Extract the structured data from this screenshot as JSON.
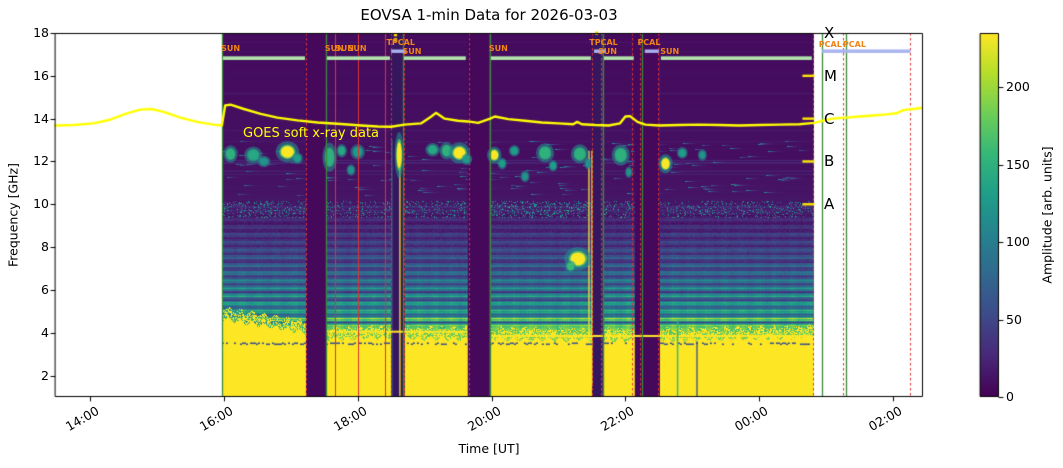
{
  "title": "EOVSA 1-min Data for 2026-03-03",
  "axes": {
    "x": {
      "label": "Time [UT]"
    },
    "y": {
      "label": "Frequency [GHz]"
    }
  },
  "colorbar": {
    "label": "Amplitude [arb. units]",
    "ticks": [
      0,
      50,
      100,
      150,
      200
    ],
    "range": [
      0,
      235
    ],
    "colormap": "viridis"
  },
  "chart_data": {
    "type": "heatmap",
    "title": "EOVSA 1-min Data for 2026-03-03",
    "xlabel": "Time [UT]",
    "ylabel": "Frequency [GHz]",
    "x_axis": {
      "range": [
        13.477,
        26.447
      ],
      "ticks": [
        {
          "hour": 14,
          "label": "14:00"
        },
        {
          "hour": 16,
          "label": "16:00"
        },
        {
          "hour": 18,
          "label": "18:00"
        },
        {
          "hour": 20,
          "label": "20:00"
        },
        {
          "hour": 22,
          "label": "22:00"
        },
        {
          "hour": 24,
          "label": "00:00"
        },
        {
          "hour": 26,
          "label": "02:00"
        }
      ]
    },
    "y_axis": {
      "range": [
        1,
        18
      ],
      "ticks": [
        18,
        16,
        14,
        12,
        10,
        8,
        6,
        4,
        2
      ]
    },
    "amplitude_range": [
      0,
      235
    ],
    "colormap": [
      "#440154",
      "#482878",
      "#3e4a89",
      "#31688e",
      "#26828e",
      "#1f9e89",
      "#35b779",
      "#6ece58",
      "#b5de2b",
      "#fde725"
    ],
    "profile": [
      [
        1,
        235
      ],
      [
        3.5,
        235
      ],
      [
        3.7,
        230
      ],
      [
        3.95,
        215
      ],
      [
        4.15,
        190
      ],
      [
        4.35,
        162
      ],
      [
        4.6,
        135
      ],
      [
        4.9,
        115
      ],
      [
        5.3,
        98
      ],
      [
        5.8,
        85
      ],
      [
        6.3,
        74
      ],
      [
        6.8,
        64
      ],
      [
        7.3,
        55
      ],
      [
        7.8,
        46
      ],
      [
        8.3,
        38
      ],
      [
        8.8,
        30
      ],
      [
        9.3,
        22
      ],
      [
        9.8,
        16
      ],
      [
        10.3,
        13
      ],
      [
        11,
        11
      ],
      [
        12,
        10
      ],
      [
        12.5,
        9
      ],
      [
        13,
        10
      ],
      [
        14,
        9
      ],
      [
        15,
        8
      ],
      [
        16,
        8
      ],
      [
        17,
        7
      ],
      [
        18,
        7
      ]
    ],
    "scans": [
      {
        "start": 15.972,
        "end": 17.227,
        "yellow_top": [
          4.65,
          4.0
        ],
        "speckle": 0.35
      },
      {
        "start": 17.526,
        "end": 18.497,
        "yellow_top": [
          3.7,
          3.8
        ],
        "speckle": 0.3
      },
      {
        "start": 18.675,
        "end": 19.63,
        "yellow_top": [
          3.75,
          3.7
        ],
        "speckle": 0.35
      },
      {
        "start": 19.975,
        "end": 21.5,
        "yellow_top": [
          3.7,
          3.65
        ],
        "speckle": 0.45
      },
      {
        "start": 21.664,
        "end": 22.14,
        "yellow_top": [
          3.65,
          3.65
        ],
        "speckle": 0.3
      },
      {
        "start": 22.516,
        "end": 24.8,
        "yellow_top": [
          3.65,
          3.8
        ],
        "speckle": 0.3
      }
    ],
    "gaps": [
      [
        17.227,
        17.526
      ],
      [
        19.645,
        19.975
      ],
      [
        22.14,
        22.516
      ]
    ],
    "cal_columns": [
      [
        18.497,
        18.705
      ],
      [
        21.5,
        21.664
      ]
    ],
    "cal_streaks": [
      {
        "t": 18.51,
        "f0": 1,
        "f1": 13,
        "value": 70
      },
      {
        "t": 18.63,
        "f0": 1,
        "f1": 13,
        "value": 235
      },
      {
        "t": 21.455,
        "f0": 1.5,
        "f1": 12.5,
        "value": 235
      },
      {
        "t": 21.5,
        "f0": 1.5,
        "f1": 12.5,
        "value": 235
      }
    ],
    "sun_bars": {
      "freq": 16.83,
      "color": "#b1e6ac"
    },
    "cal_bars": {
      "freq": 17.15,
      "color": "#a9b3ef",
      "windows": [
        [
          18.5,
          18.72
        ],
        [
          21.53,
          21.7
        ],
        [
          22.29,
          22.5
        ],
        [
          24.94,
          26.26
        ]
      ]
    },
    "cal_dots": [
      {
        "t": 18.565,
        "f": 17.92
      },
      {
        "t": 18.565,
        "f": 17.68
      },
      {
        "t": 21.57,
        "f": 18.0
      }
    ],
    "vlines": {
      "green": [
        15.972,
        17.526,
        18.675,
        19.975,
        21.664,
        22.247,
        24.935,
        25.29
      ],
      "red_dashed": [
        17.227,
        18.497,
        18.69,
        19.66,
        21.5,
        21.634,
        22.098,
        22.217,
        22.486,
        24.81,
        25.25,
        26.26
      ],
      "red_solid": [
        17.66,
        18.004,
        18.407
      ]
    },
    "annotations": [
      {
        "text": "SUN",
        "t": 15.99,
        "row": 0
      },
      {
        "text": "SUN",
        "t": 17.54,
        "row": 0
      },
      {
        "text": "SUN",
        "t": 17.69,
        "row": 0
      },
      {
        "text": "SUN",
        "t": 17.88,
        "row": 0
      },
      {
        "text": "TPCAL",
        "t": 18.46,
        "row": -1
      },
      {
        "text": "SUN",
        "t": 18.7,
        "row": 1
      },
      {
        "text": "SUN",
        "t": 19.99,
        "row": 0
      },
      {
        "text": "TPCAL",
        "t": 21.49,
        "row": -1
      },
      {
        "text": "SUN",
        "t": 21.62,
        "row": 1
      },
      {
        "text": "PCAL",
        "t": 22.21,
        "row": -1
      },
      {
        "text": "SUN",
        "t": 22.55,
        "row": 1
      },
      {
        "text": "PCAL",
        "t": 24.92,
        "row": 2
      },
      {
        "text": "PCAL",
        "t": 25.28,
        "row": 2
      }
    ],
    "blobs": [
      [
        16.1,
        12.35,
        8,
        0.45,
        150
      ],
      [
        16.44,
        12.3,
        10,
        0.45,
        140
      ],
      [
        16.6,
        12.0,
        7,
        0.3,
        120
      ],
      [
        16.95,
        12.45,
        13,
        0.55,
        235
      ],
      [
        17.1,
        12.15,
        6,
        0.3,
        130
      ],
      [
        17.58,
        12.2,
        8,
        0.75,
        150
      ],
      [
        17.76,
        12.5,
        6,
        0.35,
        140
      ],
      [
        17.9,
        11.6,
        5,
        0.3,
        120
      ],
      [
        18.0,
        12.45,
        8,
        0.4,
        130
      ],
      [
        18.62,
        12.3,
        5,
        1.2,
        235
      ],
      [
        19.12,
        12.55,
        8,
        0.35,
        140
      ],
      [
        19.33,
        12.5,
        8,
        0.45,
        150
      ],
      [
        19.52,
        12.4,
        12,
        0.55,
        235
      ],
      [
        19.63,
        12.1,
        6,
        0.3,
        130
      ],
      [
        20.04,
        12.3,
        8,
        0.45,
        235
      ],
      [
        20.16,
        11.9,
        5,
        0.3,
        130
      ],
      [
        20.34,
        12.5,
        6,
        0.3,
        130
      ],
      [
        20.5,
        11.3,
        5,
        0.3,
        120
      ],
      [
        20.8,
        12.4,
        10,
        0.5,
        150
      ],
      [
        20.92,
        11.8,
        5,
        0.3,
        130
      ],
      [
        21.29,
        7.45,
        15,
        0.6,
        235
      ],
      [
        21.18,
        7.1,
        6,
        0.3,
        160
      ],
      [
        21.32,
        12.35,
        10,
        0.5,
        150
      ],
      [
        21.44,
        11.9,
        4,
        0.3,
        120
      ],
      [
        21.93,
        12.3,
        10,
        0.55,
        150
      ],
      [
        22.05,
        11.5,
        4,
        0.3,
        120
      ],
      [
        22.6,
        11.9,
        8,
        0.5,
        235
      ],
      [
        22.85,
        12.4,
        6,
        0.3,
        130
      ],
      [
        23.15,
        12.3,
        5,
        0.3,
        120
      ]
    ],
    "hlines": [
      {
        "t0": 17.53,
        "t1": 19.63,
        "f": 4.05,
        "value": 235
      },
      {
        "t0": 19.98,
        "t1": 24.8,
        "f": 3.85,
        "value": 235
      }
    ],
    "dither_line": {
      "f": 3.5,
      "value": 60
    },
    "vstreaks": [
      {
        "t": 22.78,
        "f0": 1,
        "f1": 4.6,
        "value": 150
      },
      {
        "t": 23.07,
        "f0": 1,
        "f1": 3.6,
        "value": 60
      }
    ],
    "smear": {
      "t0": 23.9,
      "t1": 24.78,
      "f": 3.05,
      "h": 0.6,
      "value": 235
    },
    "speckle_band": {
      "fmin": 9.35,
      "fmax": 10.15
    },
    "dash_band": {
      "fmin": 10.4,
      "fmax": 12.95
    },
    "goes": {
      "annotation": "GOES soft x-ray data",
      "color": "#ffff00",
      "classes": [
        {
          "label": "X",
          "freq": 18
        },
        {
          "label": "M",
          "freq": 16
        },
        {
          "label": "C",
          "freq": 14
        },
        {
          "label": "B",
          "freq": 12
        },
        {
          "label": "A",
          "freq": 10
        }
      ],
      "class_tick_freqs": [
        16,
        14,
        12,
        10
      ],
      "line": [
        [
          13.48,
          13.68
        ],
        [
          13.75,
          13.7
        ],
        [
          14.05,
          13.78
        ],
        [
          14.3,
          13.95
        ],
        [
          14.55,
          14.25
        ],
        [
          14.75,
          14.42
        ],
        [
          14.92,
          14.45
        ],
        [
          15.1,
          14.32
        ],
        [
          15.35,
          14.05
        ],
        [
          15.6,
          13.85
        ],
        [
          15.85,
          13.72
        ],
        [
          15.97,
          13.68
        ],
        [
          16.02,
          14.62
        ],
        [
          16.1,
          14.65
        ],
        [
          16.3,
          14.45
        ],
        [
          16.55,
          14.22
        ],
        [
          16.8,
          14.05
        ],
        [
          17.1,
          13.92
        ],
        [
          17.4,
          13.82
        ],
        [
          17.75,
          13.75
        ],
        [
          18.05,
          13.68
        ],
        [
          18.3,
          13.63
        ],
        [
          18.5,
          13.62
        ],
        [
          18.7,
          13.72
        ],
        [
          18.95,
          13.78
        ],
        [
          19.1,
          14.1
        ],
        [
          19.17,
          14.27
        ],
        [
          19.3,
          14.0
        ],
        [
          19.5,
          13.9
        ],
        [
          19.65,
          13.87
        ],
        [
          19.8,
          13.8
        ],
        [
          19.98,
          14.0
        ],
        [
          20.05,
          14.1
        ],
        [
          20.25,
          13.98
        ],
        [
          20.5,
          13.9
        ],
        [
          20.75,
          13.82
        ],
        [
          21.0,
          13.78
        ],
        [
          21.22,
          13.74
        ],
        [
          21.28,
          13.85
        ],
        [
          21.35,
          13.74
        ],
        [
          21.55,
          13.7
        ],
        [
          21.75,
          13.68
        ],
        [
          21.92,
          13.78
        ],
        [
          22.0,
          14.1
        ],
        [
          22.07,
          14.12
        ],
        [
          22.18,
          13.85
        ],
        [
          22.3,
          13.72
        ],
        [
          22.5,
          13.68
        ],
        [
          22.8,
          13.7
        ],
        [
          23.1,
          13.72
        ],
        [
          23.4,
          13.7
        ],
        [
          23.7,
          13.68
        ],
        [
          24.0,
          13.7
        ],
        [
          24.3,
          13.72
        ],
        [
          24.6,
          13.74
        ],
        [
          24.82,
          13.8
        ],
        [
          24.94,
          13.9
        ],
        [
          25.1,
          14.0
        ],
        [
          25.3,
          14.05
        ],
        [
          25.5,
          14.1
        ],
        [
          25.7,
          14.15
        ],
        [
          25.9,
          14.2
        ],
        [
          26.05,
          14.25
        ],
        [
          26.15,
          14.4
        ],
        [
          26.3,
          14.45
        ],
        [
          26.42,
          14.5
        ]
      ]
    }
  }
}
